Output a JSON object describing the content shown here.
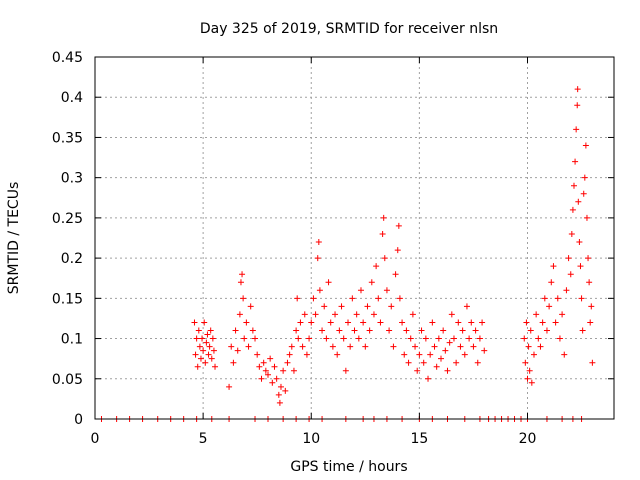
{
  "chart_data": {
    "type": "scatter",
    "title": "Day 325 of 2019, SRMTID for receiver nlsn",
    "xlabel": "GPS time / hours",
    "ylabel": "SRMTID / TECUs",
    "xlim": [
      0,
      24
    ],
    "ylim": [
      0,
      0.45
    ],
    "xticks": [
      0,
      5,
      10,
      15,
      20
    ],
    "yticks": [
      0,
      0.05,
      0.1,
      0.15,
      0.2,
      0.25,
      0.3,
      0.35,
      0.4,
      0.45
    ],
    "xtick_labels": [
      "0",
      "5",
      "10",
      "15",
      "20"
    ],
    "ytick_labels": [
      "0",
      "0.05",
      "0.1",
      "0.15",
      "0.2",
      "0.25",
      "0.3",
      "0.35",
      "0.4",
      "0.45"
    ],
    "grid": true,
    "marker": "+",
    "color": "#ff0000",
    "series": [
      {
        "name": "SRMTID",
        "points": [
          [
            0.3,
            0
          ],
          [
            1.0,
            0
          ],
          [
            1.6,
            0
          ],
          [
            2.2,
            0
          ],
          [
            2.9,
            0
          ],
          [
            3.5,
            0
          ],
          [
            4.1,
            0
          ],
          [
            4.7,
            0
          ],
          [
            5.4,
            0
          ],
          [
            6.2,
            0
          ],
          [
            7.4,
            0
          ],
          [
            8.0,
            0
          ],
          [
            8.7,
            0
          ],
          [
            9.3,
            0
          ],
          [
            9.9,
            0
          ],
          [
            10.5,
            0
          ],
          [
            11.6,
            0
          ],
          [
            12.4,
            0
          ],
          [
            12.9,
            0
          ],
          [
            13.5,
            0
          ],
          [
            14.2,
            0
          ],
          [
            15.0,
            0
          ],
          [
            15.6,
            0
          ],
          [
            16.3,
            0
          ],
          [
            17.1,
            0
          ],
          [
            17.8,
            0
          ],
          [
            18.2,
            0
          ],
          [
            18.5,
            0
          ],
          [
            18.8,
            0
          ],
          [
            19.1,
            0
          ],
          [
            19.4,
            0
          ],
          [
            19.7,
            0
          ],
          [
            20.0,
            0
          ],
          [
            20.9,
            0
          ],
          [
            21.6,
            0
          ],
          [
            22.1,
            0
          ],
          [
            22.5,
            0
          ],
          [
            4.6,
            0.12
          ],
          [
            4.65,
            0.08
          ],
          [
            4.7,
            0.1
          ],
          [
            4.75,
            0.065
          ],
          [
            4.8,
            0.11
          ],
          [
            4.85,
            0.09
          ],
          [
            4.9,
            0.075
          ],
          [
            4.95,
            0.1
          ],
          [
            5.0,
            0.085
          ],
          [
            5.05,
            0.12
          ],
          [
            5.1,
            0.07
          ],
          [
            5.15,
            0.095
          ],
          [
            5.2,
            0.105
          ],
          [
            5.25,
            0.08
          ],
          [
            5.3,
            0.09
          ],
          [
            5.35,
            0.11
          ],
          [
            5.4,
            0.075
          ],
          [
            5.45,
            0.1
          ],
          [
            5.5,
            0.085
          ],
          [
            5.55,
            0.065
          ],
          [
            6.2,
            0.04
          ],
          [
            6.3,
            0.09
          ],
          [
            6.4,
            0.07
          ],
          [
            6.5,
            0.11
          ],
          [
            6.6,
            0.085
          ],
          [
            6.7,
            0.13
          ],
          [
            6.75,
            0.17
          ],
          [
            6.8,
            0.18
          ],
          [
            6.85,
            0.15
          ],
          [
            6.9,
            0.1
          ],
          [
            7.0,
            0.12
          ],
          [
            7.1,
            0.09
          ],
          [
            7.2,
            0.14
          ],
          [
            7.3,
            0.11
          ],
          [
            7.4,
            0.1
          ],
          [
            7.5,
            0.08
          ],
          [
            7.6,
            0.065
          ],
          [
            7.7,
            0.05
          ],
          [
            7.8,
            0.07
          ],
          [
            7.9,
            0.06
          ],
          [
            8.0,
            0.055
          ],
          [
            8.1,
            0.075
          ],
          [
            8.2,
            0.045
          ],
          [
            8.3,
            0.065
          ],
          [
            8.4,
            0.05
          ],
          [
            8.5,
            0.03
          ],
          [
            8.55,
            0.02
          ],
          [
            8.6,
            0.04
          ],
          [
            8.7,
            0.06
          ],
          [
            8.8,
            0.035
          ],
          [
            8.9,
            0.07
          ],
          [
            9.0,
            0.08
          ],
          [
            9.1,
            0.09
          ],
          [
            9.2,
            0.06
          ],
          [
            9.3,
            0.11
          ],
          [
            9.35,
            0.15
          ],
          [
            9.4,
            0.1
          ],
          [
            9.5,
            0.12
          ],
          [
            9.6,
            0.09
          ],
          [
            9.7,
            0.13
          ],
          [
            9.8,
            0.08
          ],
          [
            9.9,
            0.1
          ],
          [
            10.0,
            0.12
          ],
          [
            10.1,
            0.15
          ],
          [
            10.2,
            0.13
          ],
          [
            10.3,
            0.2
          ],
          [
            10.35,
            0.22
          ],
          [
            10.4,
            0.16
          ],
          [
            10.5,
            0.11
          ],
          [
            10.6,
            0.14
          ],
          [
            10.7,
            0.1
          ],
          [
            10.8,
            0.17
          ],
          [
            10.9,
            0.12
          ],
          [
            11.0,
            0.09
          ],
          [
            11.1,
            0.13
          ],
          [
            11.2,
            0.08
          ],
          [
            11.3,
            0.11
          ],
          [
            11.4,
            0.14
          ],
          [
            11.5,
            0.1
          ],
          [
            11.6,
            0.06
          ],
          [
            11.7,
            0.12
          ],
          [
            11.8,
            0.09
          ],
          [
            11.9,
            0.15
          ],
          [
            12.0,
            0.11
          ],
          [
            12.1,
            0.13
          ],
          [
            12.2,
            0.1
          ],
          [
            12.3,
            0.16
          ],
          [
            12.4,
            0.12
          ],
          [
            12.5,
            0.09
          ],
          [
            12.6,
            0.14
          ],
          [
            12.7,
            0.11
          ],
          [
            12.8,
            0.17
          ],
          [
            12.9,
            0.13
          ],
          [
            13.0,
            0.19
          ],
          [
            13.1,
            0.15
          ],
          [
            13.2,
            0.12
          ],
          [
            13.3,
            0.23
          ],
          [
            13.35,
            0.25
          ],
          [
            13.4,
            0.2
          ],
          [
            13.5,
            0.16
          ],
          [
            13.6,
            0.11
          ],
          [
            13.7,
            0.14
          ],
          [
            13.8,
            0.09
          ],
          [
            13.9,
            0.18
          ],
          [
            14.0,
            0.21
          ],
          [
            14.05,
            0.24
          ],
          [
            14.1,
            0.15
          ],
          [
            14.2,
            0.12
          ],
          [
            14.3,
            0.08
          ],
          [
            14.4,
            0.11
          ],
          [
            14.5,
            0.07
          ],
          [
            14.6,
            0.1
          ],
          [
            14.7,
            0.13
          ],
          [
            14.8,
            0.09
          ],
          [
            14.9,
            0.06
          ],
          [
            15.0,
            0.08
          ],
          [
            15.1,
            0.11
          ],
          [
            15.2,
            0.07
          ],
          [
            15.3,
            0.1
          ],
          [
            15.4,
            0.05
          ],
          [
            15.5,
            0.08
          ],
          [
            15.6,
            0.12
          ],
          [
            15.7,
            0.09
          ],
          [
            15.8,
            0.065
          ],
          [
            15.9,
            0.1
          ],
          [
            16.0,
            0.075
          ],
          [
            16.1,
            0.11
          ],
          [
            16.2,
            0.085
          ],
          [
            16.3,
            0.06
          ],
          [
            16.4,
            0.095
          ],
          [
            16.5,
            0.13
          ],
          [
            16.6,
            0.1
          ],
          [
            16.7,
            0.07
          ],
          [
            16.8,
            0.12
          ],
          [
            16.9,
            0.09
          ],
          [
            17.0,
            0.11
          ],
          [
            17.1,
            0.08
          ],
          [
            17.2,
            0.14
          ],
          [
            17.3,
            0.1
          ],
          [
            17.4,
            0.12
          ],
          [
            17.5,
            0.09
          ],
          [
            17.6,
            0.11
          ],
          [
            17.7,
            0.07
          ],
          [
            17.8,
            0.1
          ],
          [
            17.9,
            0.12
          ],
          [
            18.0,
            0.085
          ],
          [
            19.85,
            0.1
          ],
          [
            19.9,
            0.07
          ],
          [
            19.95,
            0.12
          ],
          [
            20.0,
            0.05
          ],
          [
            20.05,
            0.09
          ],
          [
            20.1,
            0.06
          ],
          [
            20.15,
            0.11
          ],
          [
            20.2,
            0.045
          ],
          [
            20.3,
            0.08
          ],
          [
            20.4,
            0.13
          ],
          [
            20.5,
            0.1
          ],
          [
            20.6,
            0.09
          ],
          [
            20.7,
            0.12
          ],
          [
            20.8,
            0.15
          ],
          [
            20.9,
            0.11
          ],
          [
            21.0,
            0.14
          ],
          [
            21.1,
            0.17
          ],
          [
            21.2,
            0.19
          ],
          [
            21.3,
            0.12
          ],
          [
            21.4,
            0.15
          ],
          [
            21.5,
            0.1
          ],
          [
            21.6,
            0.13
          ],
          [
            21.7,
            0.08
          ],
          [
            21.8,
            0.16
          ],
          [
            21.9,
            0.2
          ],
          [
            22.0,
            0.18
          ],
          [
            22.05,
            0.23
          ],
          [
            22.1,
            0.26
          ],
          [
            22.15,
            0.29
          ],
          [
            22.2,
            0.32
          ],
          [
            22.25,
            0.36
          ],
          [
            22.3,
            0.39
          ],
          [
            22.32,
            0.41
          ],
          [
            22.35,
            0.27
          ],
          [
            22.4,
            0.22
          ],
          [
            22.45,
            0.19
          ],
          [
            22.5,
            0.15
          ],
          [
            22.55,
            0.11
          ],
          [
            22.6,
            0.28
          ],
          [
            22.65,
            0.3
          ],
          [
            22.7,
            0.34
          ],
          [
            22.75,
            0.25
          ],
          [
            22.8,
            0.2
          ],
          [
            22.85,
            0.17
          ],
          [
            22.9,
            0.12
          ],
          [
            22.95,
            0.14
          ],
          [
            23.0,
            0.07
          ]
        ]
      }
    ]
  }
}
